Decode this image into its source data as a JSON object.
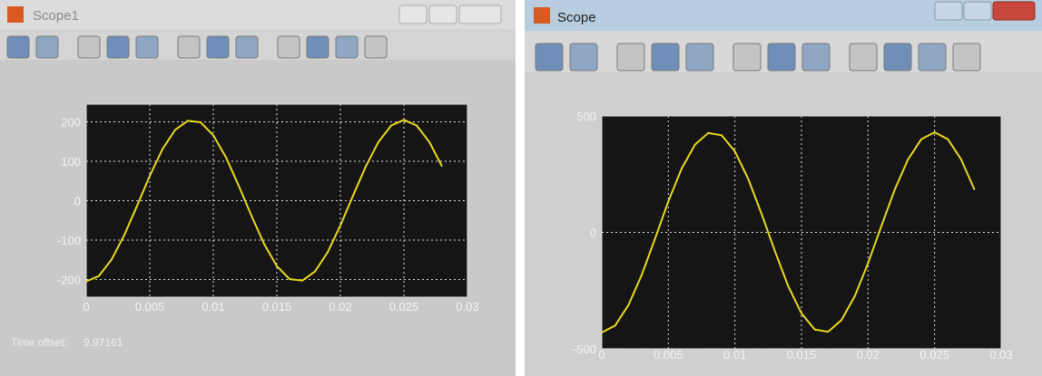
{
  "windows": [
    {
      "title": "Scope1",
      "time_offset_label": "Time offset:",
      "time_offset_value": "9.97161"
    },
    {
      "title": "Scope"
    }
  ],
  "chart_data": [
    {
      "type": "line",
      "color": "#e8d820",
      "grid": true,
      "x": [
        0,
        0.001,
        0.002,
        0.003,
        0.004,
        0.005,
        0.006,
        0.007,
        0.008,
        0.009,
        0.01,
        0.011,
        0.012,
        0.013,
        0.014,
        0.015,
        0.016,
        0.017,
        0.018,
        0.019,
        0.02,
        0.021,
        0.022,
        0.023,
        0.024,
        0.025,
        0.026,
        0.027,
        0.028
      ],
      "values": [
        -205,
        -191,
        -149,
        -87,
        -13,
        63,
        131,
        180,
        203,
        199,
        166,
        110,
        38,
        -38,
        -110,
        -166,
        -199,
        -203,
        -180,
        -131,
        -63,
        13,
        87,
        149,
        191,
        205,
        191,
        149,
        87
      ],
      "xlim": [
        0,
        0.03
      ],
      "xticks": [
        0,
        0.005,
        0.01,
        0.015,
        0.02,
        0.025,
        0.03
      ],
      "ylim": [
        -245,
        245
      ],
      "yticks": [
        -200,
        -100,
        0,
        100,
        200
      ]
    },
    {
      "type": "line",
      "color": "#e8d820",
      "grid": true,
      "x": [
        0,
        0.001,
        0.002,
        0.003,
        0.004,
        0.005,
        0.006,
        0.007,
        0.008,
        0.009,
        0.01,
        0.011,
        0.012,
        0.013,
        0.014,
        0.015,
        0.016,
        0.017,
        0.018,
        0.019,
        0.02,
        0.021,
        0.022,
        0.023,
        0.024,
        0.025,
        0.026,
        0.027,
        0.028
      ],
      "values": [
        -430,
        -400,
        -313,
        -183,
        -27,
        133,
        274,
        377,
        427,
        417,
        348,
        230,
        80,
        -80,
        -230,
        -348,
        -417,
        -427,
        -377,
        -274,
        -133,
        27,
        183,
        313,
        400,
        430,
        400,
        313,
        183
      ],
      "xlim": [
        0,
        0.03
      ],
      "xticks": [
        0,
        0.005,
        0.01,
        0.015,
        0.02,
        0.025,
        0.03
      ],
      "ylim": [
        -500,
        500
      ],
      "yticks": [
        -500,
        0,
        500
      ]
    }
  ]
}
